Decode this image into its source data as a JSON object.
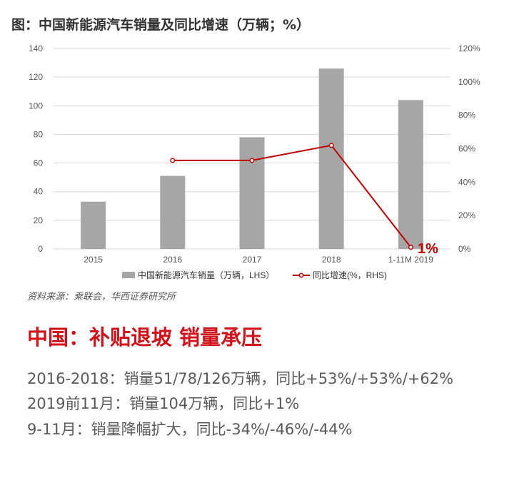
{
  "header": {
    "title": "图：中国新能源汽车销量及同比增速（万辆；%）"
  },
  "chart_data": {
    "type": "bar",
    "categories": [
      "2015",
      "2016",
      "2017",
      "2018",
      "1-11M 2019"
    ],
    "series": [
      {
        "name": "中国新能源汽车销量（万辆，LHS）",
        "kind": "bar",
        "axis": "left",
        "values": [
          33,
          51,
          78,
          126,
          104
        ]
      },
      {
        "name": "同比增速(%，RHS)",
        "kind": "line",
        "axis": "right",
        "values": [
          null,
          53,
          53,
          62,
          1
        ]
      }
    ],
    "y_left": {
      "ylim": [
        0,
        140
      ],
      "ticks": [
        "0",
        "20",
        "40",
        "60",
        "80",
        "100",
        "120",
        "140"
      ]
    },
    "y_right": {
      "ylim": [
        0,
        120
      ],
      "ticks": [
        "0%",
        "20%",
        "40%",
        "60%",
        "80%",
        "100%",
        "120%"
      ]
    },
    "annotation": "1%",
    "grid": "horizontal",
    "legend_position": "bottom",
    "colors": {
      "bar": "#a6a6a6",
      "line": "#c00000",
      "annotation": "#c00000"
    }
  },
  "source": "资料来源：乘联会，华西证券研究所",
  "headline": "中国：补贴退坡 销量承压",
  "summary": [
    "2016-2018：销量51/78/126万辆，同比+53%/+53%/+62%",
    "2019前11月：销量104万辆，同比+1%",
    "9-11月：销量降幅扩大，同比-34%/-46%/-44%"
  ]
}
